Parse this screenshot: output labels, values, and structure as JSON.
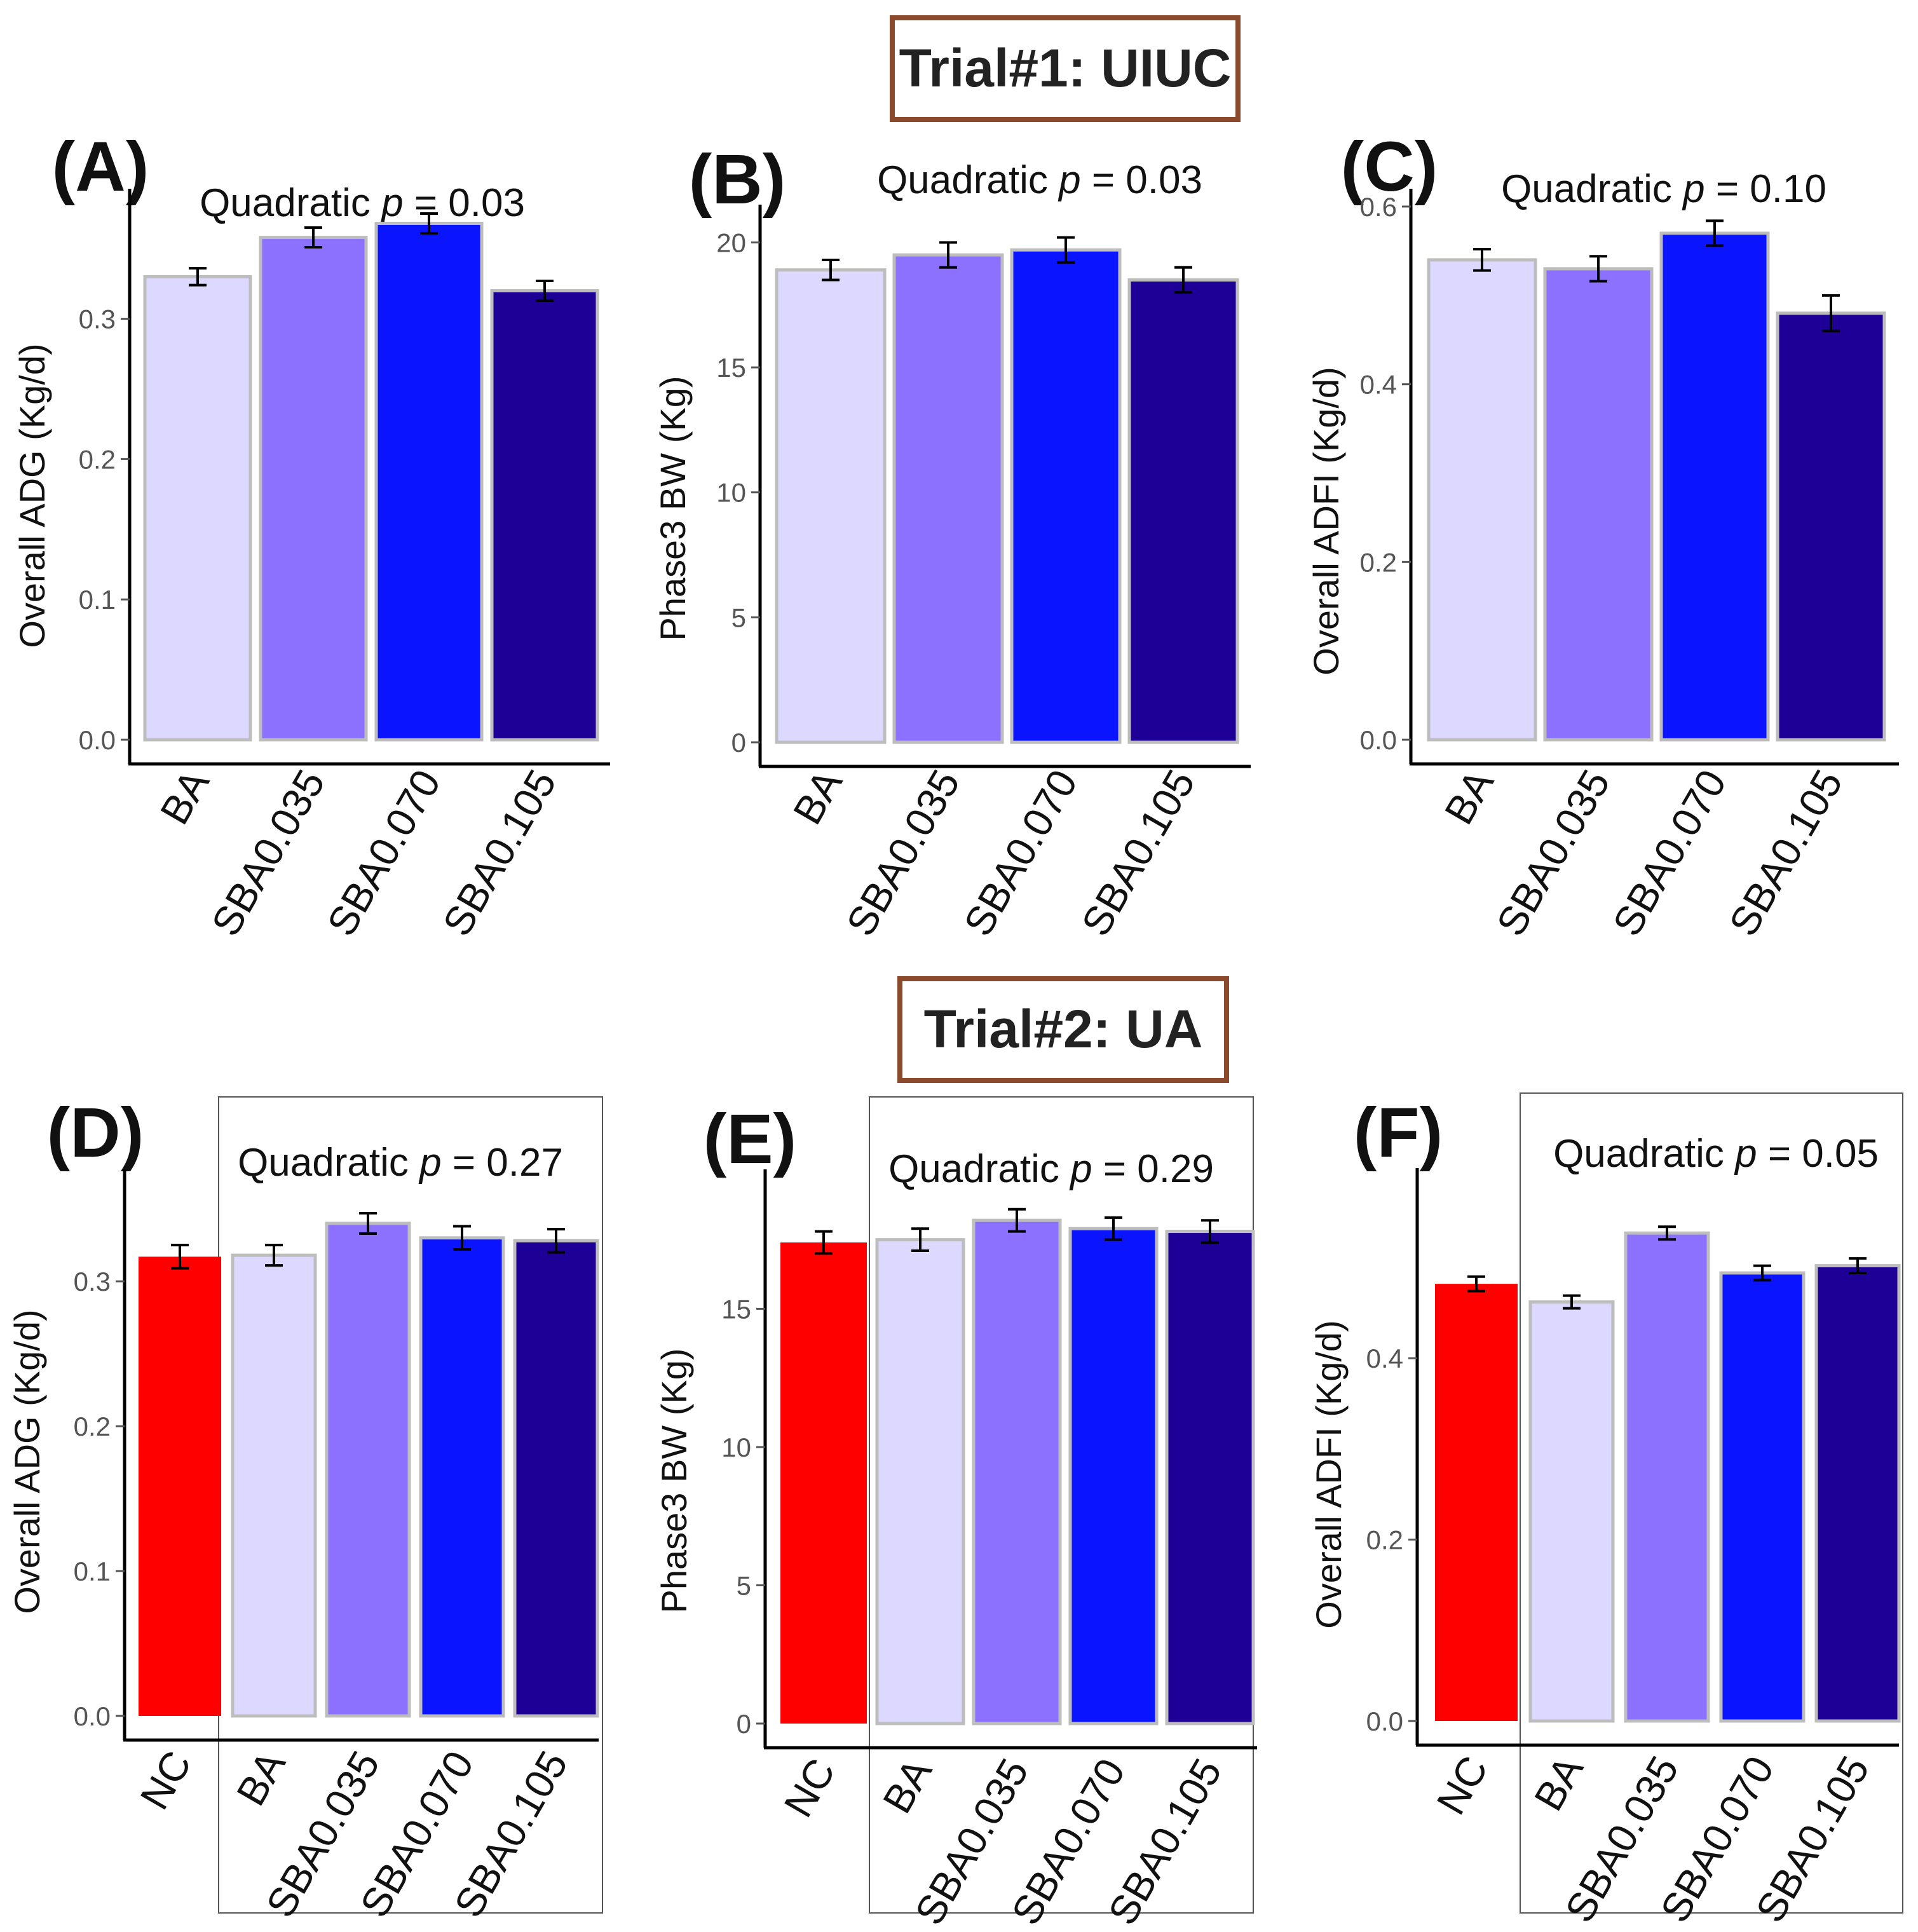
{
  "figure": {
    "trial1_title": "Trial#1: UIUC",
    "trial2_title": "Trial#2: UA",
    "trial_box_color": "#8B4A2B"
  },
  "colors": {
    "NC": "#FF0000",
    "BA": "#DCD8FF",
    "SBA0.035": "#8C70FF",
    "SBA0.070": "#0A14FF",
    "SBA0.105": "#1E0096",
    "bar_border": "#BDBDBD",
    "axis": "#000000"
  },
  "chart_data": [
    {
      "panel": "(A)",
      "type": "bar",
      "annotation_prefix": "Quadratic ",
      "annotation_italic": "p",
      "annotation_suffix": " = 0.03",
      "ylabel": "Overall ADG (Kg/d)",
      "categories": [
        "BA",
        "SBA0.035",
        "SBA0.070",
        "SBA0.105"
      ],
      "values": [
        0.33,
        0.358,
        0.368,
        0.32
      ],
      "errors": [
        0.006,
        0.007,
        0.007,
        0.007
      ],
      "ylim": [
        0,
        0.38
      ],
      "ticks": [
        0.0,
        0.1,
        0.2,
        0.3
      ],
      "tick_labels": [
        "0.0",
        "0.1",
        "0.2",
        "0.3"
      ],
      "grouped_box": false
    },
    {
      "panel": "(B)",
      "type": "bar",
      "annotation_prefix": "Quadratic ",
      "annotation_italic": "p",
      "annotation_suffix": " = 0.03",
      "ylabel": "Phase3 BW (Kg)",
      "categories": [
        "BA",
        "SBA0.035",
        "SBA0.070",
        "SBA0.105"
      ],
      "values": [
        18.9,
        19.5,
        19.7,
        18.5
      ],
      "errors": [
        0.4,
        0.5,
        0.5,
        0.5
      ],
      "ylim": [
        0,
        20.8
      ],
      "ticks": [
        0,
        5,
        10,
        15,
        20
      ],
      "tick_labels": [
        "0",
        "5",
        "10",
        "15",
        "20"
      ],
      "grouped_box": false
    },
    {
      "panel": "(C)",
      "type": "bar",
      "annotation_prefix": "Quadratic ",
      "annotation_italic": "p",
      "annotation_suffix": " = 0.10",
      "ylabel": "Overall ADFI (Kg/d)",
      "categories": [
        "BA",
        "SBA0.035",
        "SBA0.070",
        "SBA0.105"
      ],
      "values": [
        0.54,
        0.53,
        0.57,
        0.48
      ],
      "errors": [
        0.012,
        0.014,
        0.014,
        0.02
      ],
      "ylim": [
        0,
        0.6
      ],
      "ticks": [
        0.0,
        0.2,
        0.4,
        0.6
      ],
      "tick_labels": [
        "0.0",
        "0.2",
        "0.4",
        "0.6"
      ],
      "grouped_box": false
    },
    {
      "panel": "(D)",
      "type": "bar",
      "annotation_prefix": "Quadratic ",
      "annotation_italic": "p",
      "annotation_suffix": " = 0.27",
      "ylabel": "Overall ADG (Kg/d)",
      "categories": [
        "NC",
        "BA",
        "SBA0.035",
        "SBA0.070",
        "SBA0.105"
      ],
      "values": [
        0.317,
        0.318,
        0.34,
        0.33,
        0.328
      ],
      "errors": [
        0.008,
        0.007,
        0.007,
        0.008,
        0.008
      ],
      "ylim": [
        0,
        0.365
      ],
      "ticks": [
        0.0,
        0.1,
        0.2,
        0.3
      ],
      "tick_labels": [
        "0.0",
        "0.1",
        "0.2",
        "0.3"
      ],
      "grouped_box": true
    },
    {
      "panel": "(E)",
      "type": "bar",
      "annotation_prefix": "Quadratic ",
      "annotation_italic": "p",
      "annotation_suffix": " = 0.29",
      "ylabel": "Phase3 BW (Kg)",
      "categories": [
        "NC",
        "BA",
        "SBA0.035",
        "SBA0.070",
        "SBA0.105"
      ],
      "values": [
        17.4,
        17.5,
        18.2,
        17.9,
        17.8
      ],
      "errors": [
        0.4,
        0.4,
        0.4,
        0.4,
        0.4
      ],
      "ylim": [
        0,
        19.4
      ],
      "ticks": [
        0,
        5,
        10,
        15
      ],
      "tick_labels": [
        "0",
        "5",
        "10",
        "15"
      ],
      "grouped_box": true
    },
    {
      "panel": "(F)",
      "type": "bar",
      "annotation_prefix": "Quadratic ",
      "annotation_italic": "p",
      "annotation_suffix": " = 0.05",
      "ylabel": "Overall ADFI (Kg/d)",
      "categories": [
        "NC",
        "BA",
        "SBA0.035",
        "SBA0.070",
        "SBA0.105"
      ],
      "values": [
        0.482,
        0.462,
        0.538,
        0.494,
        0.502
      ],
      "errors": [
        0.008,
        0.007,
        0.007,
        0.008,
        0.008
      ],
      "ylim": [
        0,
        0.59
      ],
      "ticks": [
        0.0,
        0.2,
        0.4
      ],
      "tick_labels": [
        "0.0",
        "0.2",
        "0.4"
      ],
      "grouped_box": true
    }
  ]
}
